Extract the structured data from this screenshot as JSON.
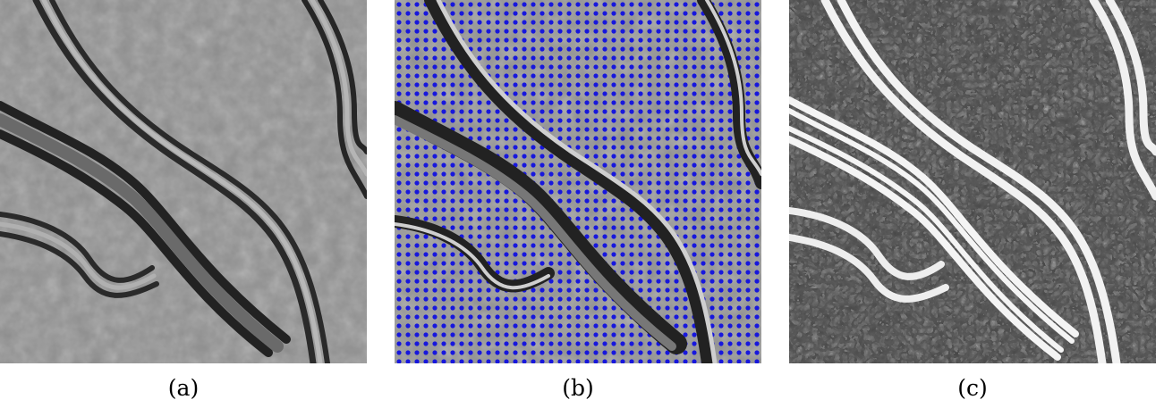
{
  "figure": {
    "panels": [
      {
        "id": "a",
        "caption": "(a)",
        "content": "grayscale-micrograph"
      },
      {
        "id": "b",
        "caption": "(b)",
        "content": "micrograph-with-orientation-glyphs",
        "glyph_color": "#1010e0"
      },
      {
        "id": "c",
        "caption": "(c)",
        "content": "enhanced-ridge-image"
      }
    ]
  }
}
